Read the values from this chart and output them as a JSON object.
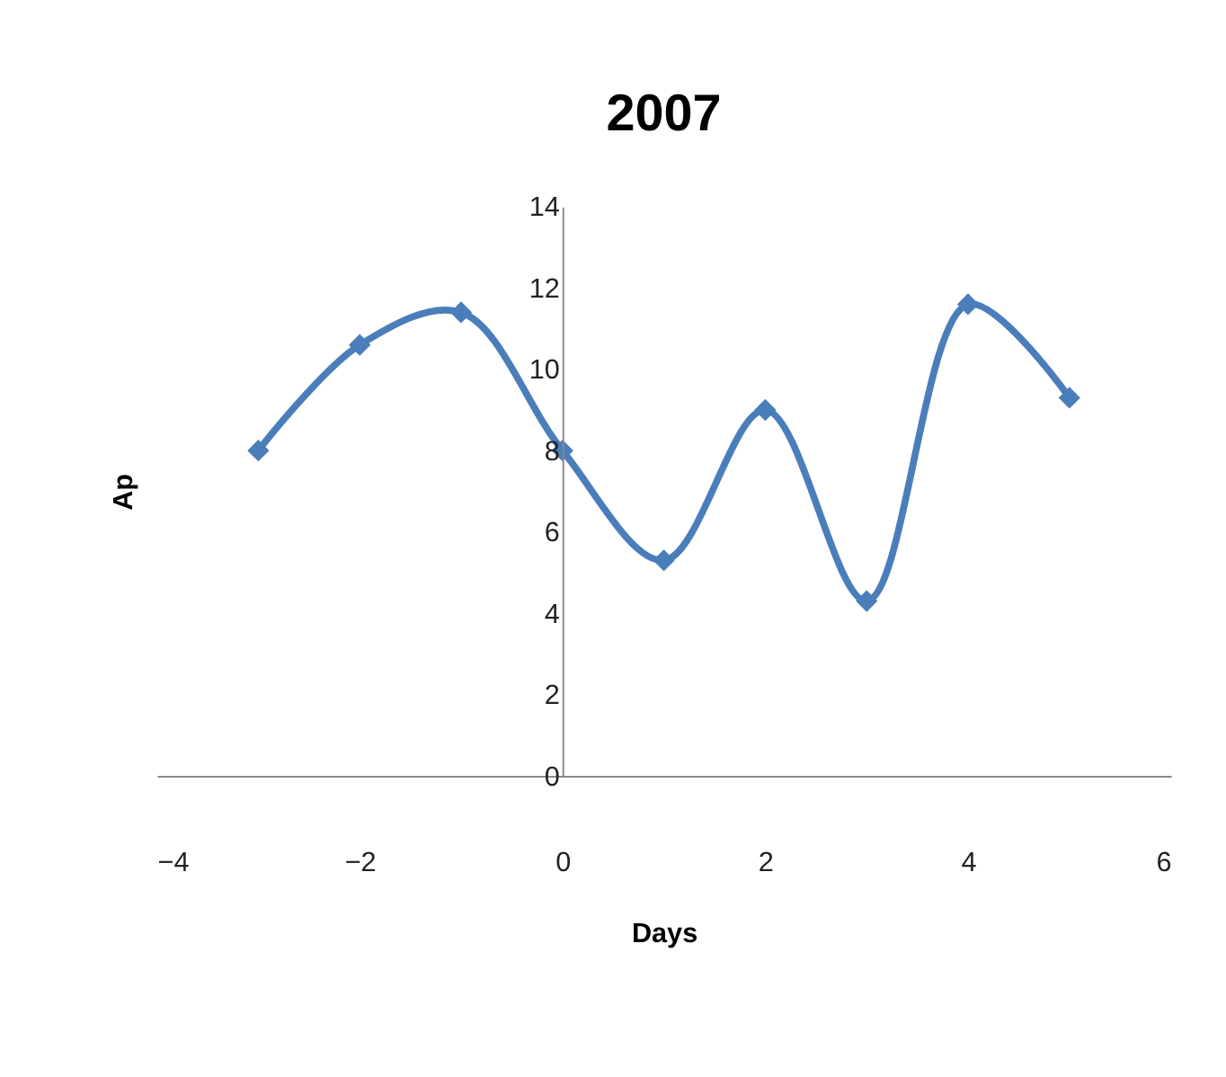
{
  "chart_data": {
    "type": "line",
    "title": "2007",
    "xlabel": "Days",
    "ylabel": "Ap",
    "x": [
      -3,
      -2,
      -1,
      0,
      1,
      2,
      3,
      4,
      5
    ],
    "series": [
      {
        "color": "#4a7ebb",
        "values": [
          8,
          10.6,
          11.4,
          8,
          5.3,
          9,
          4.3,
          11.6,
          9.3
        ]
      }
    ],
    "xlim": [
      -4,
      6
    ],
    "xticks": [
      -4,
      -2,
      0,
      2,
      4,
      6
    ],
    "ylim": [
      0,
      14
    ],
    "yticks": [
      0,
      2,
      4,
      6,
      8,
      10,
      12,
      14
    ],
    "grid": false,
    "marker": "diamond",
    "line_style": "solid"
  }
}
